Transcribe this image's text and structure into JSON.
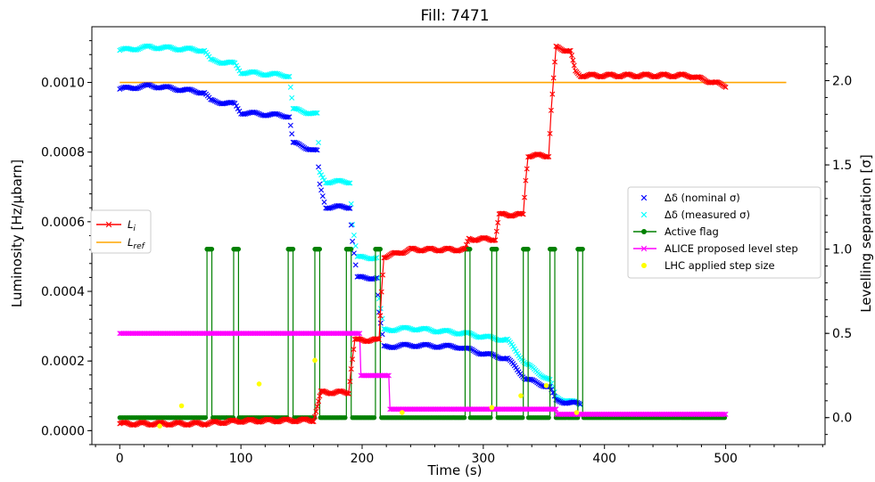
{
  "chart_data": {
    "type": "line",
    "title": "Fill: 7471",
    "xlabel": "Time (s)",
    "ylabel_left": "Luminosity [Hz/μbarn]",
    "ylabel_right": "Levelling separation [σ]",
    "xlim": [
      -23,
      582
    ],
    "ylim_left": [
      -4e-05,
      0.00116
    ],
    "ylim_right": [
      -0.16,
      2.32
    ],
    "x_ticks": [
      0,
      100,
      200,
      300,
      400,
      500
    ],
    "x_tick_labels": [
      "0",
      "100",
      "200",
      "300",
      "400",
      "500"
    ],
    "y_left_ticks": [
      0.0,
      0.0002,
      0.0004,
      0.0006,
      0.0008,
      0.001
    ],
    "y_left_tick_labels": [
      "0.0000",
      "0.0002",
      "0.0004",
      "0.0006",
      "0.0008",
      "0.0010"
    ],
    "y_right_ticks": [
      0.0,
      0.5,
      1.0,
      1.5,
      2.0
    ],
    "y_right_tick_labels": [
      "0.0",
      "0.5",
      "1.0",
      "1.5",
      "2.0"
    ],
    "legend_left": [
      {
        "key": "Li",
        "base": "L",
        "sub": "i",
        "color": "#ff0000",
        "marker": "x"
      },
      {
        "key": "Lref",
        "base": "L",
        "sub": "ref",
        "color": "#ffa500",
        "marker": "none"
      }
    ],
    "legend_right": [
      {
        "key": "nominal",
        "label": "Δδ (nominal σ)",
        "color": "#0000ff",
        "marker": "x"
      },
      {
        "key": "measured",
        "label": "Δδ (measured σ)",
        "color": "#00ffff",
        "marker": "x"
      },
      {
        "key": "flag",
        "label": "Active flag",
        "color": "#008000",
        "marker": "o-line"
      },
      {
        "key": "proposed",
        "label": "ALICE proposed level step",
        "color": "#ff00ff",
        "marker": "x-line"
      },
      {
        "key": "applied",
        "label": "LHC applied step size",
        "color": "#ffff00",
        "marker": "dot"
      }
    ],
    "series": {
      "L_ref": {
        "axis": "left",
        "color": "#ffa500",
        "points": [
          [
            0,
            0.001
          ],
          [
            550,
            0.001
          ]
        ]
      },
      "L_i": {
        "axis": "left",
        "color": "#ff0000",
        "segments": [
          [
            0,
            2e-05
          ],
          [
            70,
            2e-05
          ],
          [
            100,
            3e-05
          ],
          [
            160,
            3e-05
          ],
          [
            168,
            0.00011
          ],
          [
            189,
            0.00011
          ],
          [
            195,
            0.00026
          ],
          [
            214,
            0.00026
          ],
          [
            217,
            0.0005
          ],
          [
            240,
            0.00052
          ],
          [
            285,
            0.00052
          ],
          [
            290,
            0.00055
          ],
          [
            310,
            0.00055
          ],
          [
            315,
            0.00062
          ],
          [
            333,
            0.00062
          ],
          [
            337,
            0.00079
          ],
          [
            354,
            0.00079
          ],
          [
            358,
            0.0011
          ],
          [
            372,
            0.00109
          ],
          [
            380,
            0.00102
          ],
          [
            420,
            0.00102
          ],
          [
            470,
            0.00102
          ],
          [
            500,
            0.00099
          ]
        ],
        "steps": [
          [
            0,
            2e-05
          ],
          [
            70,
            2e-05
          ],
          [
            71,
            2.1e-05
          ],
          [
            100,
            2.8e-05
          ],
          [
            160,
            3e-05
          ],
          [
            163,
            7e-05
          ],
          [
            166,
            0.00011
          ],
          [
            189,
            0.00011
          ],
          [
            191,
            0.00018
          ],
          [
            194,
            0.00026
          ],
          [
            214,
            0.00026
          ],
          [
            216,
            0.0004
          ],
          [
            218,
            0.0005
          ],
          [
            230,
            0.00051
          ],
          [
            240,
            0.00052
          ],
          [
            285,
            0.00052
          ],
          [
            288,
            0.00055
          ],
          [
            310,
            0.00055
          ],
          [
            313,
            0.00062
          ],
          [
            333,
            0.00062
          ],
          [
            335,
            0.00072
          ],
          [
            337,
            0.00079
          ],
          [
            354,
            0.00079
          ],
          [
            356,
            0.00092
          ],
          [
            360,
            0.0011
          ],
          [
            372,
            0.00109
          ],
          [
            376,
            0.00103
          ],
          [
            380,
            0.00102
          ],
          [
            420,
            0.00102
          ],
          [
            460,
            0.00102
          ],
          [
            470,
            0.00102
          ],
          [
            500,
            0.00099
          ]
        ]
      },
      "delta_nominal": {
        "axis": "right",
        "color": "#0000ff",
        "steps": [
          [
            0,
            1.95
          ],
          [
            25,
            1.97
          ],
          [
            70,
            1.93
          ],
          [
            75,
            1.88
          ],
          [
            95,
            1.86
          ],
          [
            100,
            1.81
          ],
          [
            140,
            1.79
          ],
          [
            143,
            1.63
          ],
          [
            163,
            1.58
          ],
          [
            165,
            1.38
          ],
          [
            170,
            1.25
          ],
          [
            190,
            1.25
          ],
          [
            192,
            1.05
          ],
          [
            196,
            0.83
          ],
          [
            212,
            0.83
          ],
          [
            214,
            0.62
          ],
          [
            218,
            0.42
          ],
          [
            240,
            0.43
          ],
          [
            280,
            0.42
          ],
          [
            300,
            0.38
          ],
          [
            320,
            0.35
          ],
          [
            335,
            0.23
          ],
          [
            355,
            0.18
          ],
          [
            360,
            0.1
          ],
          [
            380,
            0.08
          ]
        ]
      },
      "delta_measured": {
        "axis": "right",
        "color": "#00ffff",
        "steps": [
          [
            0,
            2.18
          ],
          [
            25,
            2.2
          ],
          [
            70,
            2.18
          ],
          [
            75,
            2.12
          ],
          [
            95,
            2.1
          ],
          [
            100,
            2.05
          ],
          [
            140,
            2.03
          ],
          [
            143,
            1.83
          ],
          [
            163,
            1.8
          ],
          [
            165,
            1.45
          ],
          [
            170,
            1.4
          ],
          [
            190,
            1.4
          ],
          [
            192,
            1.15
          ],
          [
            196,
            0.95
          ],
          [
            212,
            0.95
          ],
          [
            214,
            0.7
          ],
          [
            218,
            0.52
          ],
          [
            240,
            0.53
          ],
          [
            285,
            0.5
          ],
          [
            300,
            0.48
          ],
          [
            320,
            0.46
          ],
          [
            335,
            0.32
          ],
          [
            355,
            0.22
          ],
          [
            360,
            0.12
          ],
          [
            380,
            0.08
          ]
        ]
      },
      "active_flag": {
        "axis": "right",
        "color": "#008000",
        "baseline": 0.0,
        "high": 1.0,
        "pulses": [
          [
            72,
            76
          ],
          [
            94,
            98
          ],
          [
            139,
            143
          ],
          [
            161,
            165
          ],
          [
            187,
            191
          ],
          [
            211,
            215
          ],
          [
            285,
            289
          ],
          [
            307,
            311
          ],
          [
            333,
            337
          ],
          [
            355,
            359
          ],
          [
            378,
            382
          ]
        ],
        "x_start": 0,
        "x_end": 500
      },
      "alice_proposed": {
        "axis": "right",
        "color": "#ff00ff",
        "steps": [
          [
            0,
            0.5
          ],
          [
            198,
            0.5
          ],
          [
            199,
            0.25
          ],
          [
            222,
            0.25
          ],
          [
            223,
            0.05
          ],
          [
            360,
            0.05
          ],
          [
            361,
            0.02
          ],
          [
            500,
            0.02
          ]
        ]
      },
      "lhc_applied": {
        "axis": "right",
        "color": "#ffff00",
        "points": [
          [
            33,
            -0.05
          ],
          [
            51,
            0.07
          ],
          [
            115,
            0.2
          ],
          [
            161,
            0.34
          ],
          [
            233,
            0.03
          ],
          [
            307,
            0.06
          ],
          [
            331,
            0.13
          ],
          [
            352,
            0.19
          ],
          [
            377,
            0.03
          ]
        ]
      }
    }
  }
}
